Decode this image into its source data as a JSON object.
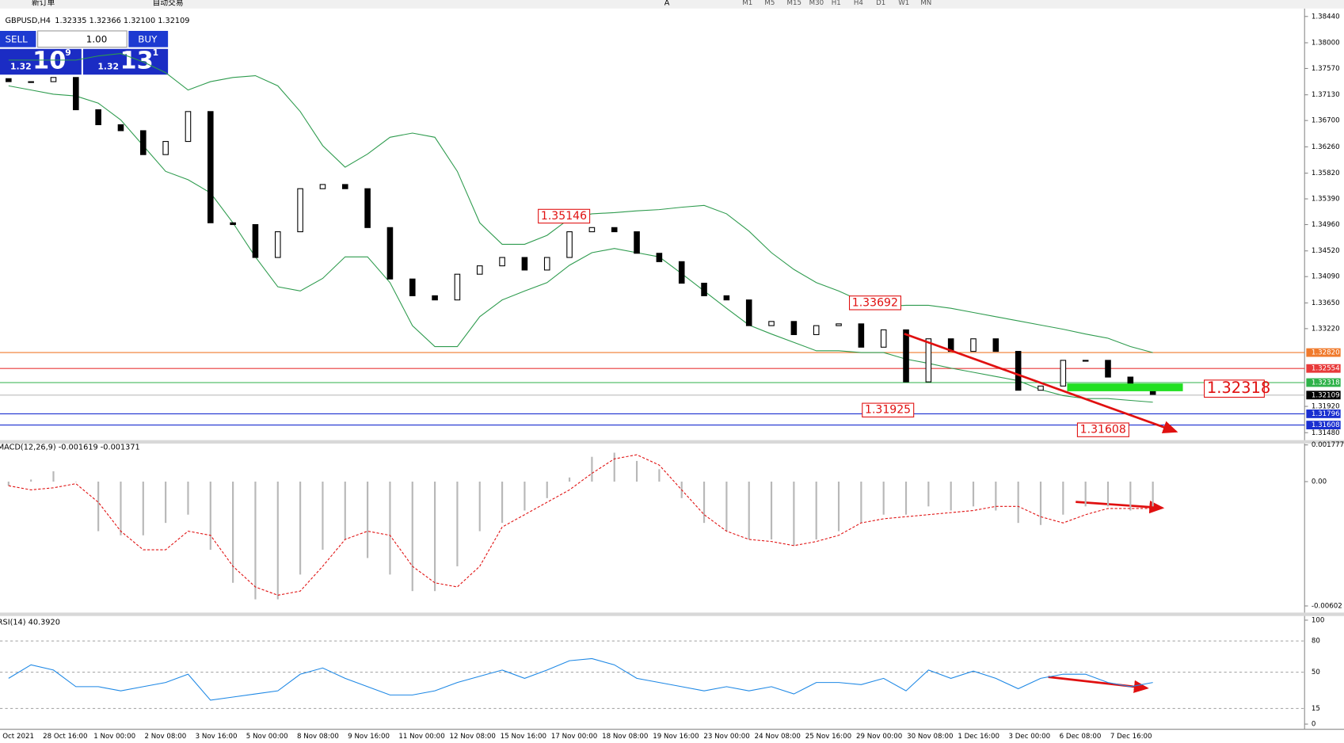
{
  "toolbar": {
    "items": [
      "新订单",
      "自动交易",
      "A"
    ],
    "timeframes": [
      "M1",
      "M5",
      "M15",
      "M30",
      "H1",
      "H4",
      "D1",
      "W1",
      "MN"
    ]
  },
  "symbol_header": {
    "symbol": "GBPUSD,H4",
    "ohlc": "1.32335 1.32366 1.32100 1.32109"
  },
  "trade_panel": {
    "sell": "SELL",
    "buy": "BUY",
    "volume": "1.00",
    "bid": {
      "prefix": "1.32",
      "big": "10",
      "sup": "9"
    },
    "ask": {
      "prefix": "1.32",
      "big": "13",
      "sup": "1"
    }
  },
  "main_chart": {
    "ylim": [
      1.3137,
      1.385
    ],
    "yticks": [
      {
        "value": 1.3844,
        "label": "1.38440"
      },
      {
        "value": 1.38,
        "label": "1.38000"
      },
      {
        "value": 1.3757,
        "label": "1.37570"
      },
      {
        "value": 1.3713,
        "label": "1.37130"
      },
      {
        "value": 1.367,
        "label": "1.36700"
      },
      {
        "value": 1.3626,
        "label": "1.36260"
      },
      {
        "value": 1.3582,
        "label": "1.35820"
      },
      {
        "value": 1.3539,
        "label": "1.35390"
      },
      {
        "value": 1.3496,
        "label": "1.34960"
      },
      {
        "value": 1.3452,
        "label": "1.34520"
      },
      {
        "value": 1.3409,
        "label": "1.34090"
      },
      {
        "value": 1.3365,
        "label": "1.33650"
      },
      {
        "value": 1.3322,
        "label": "1.33220"
      },
      {
        "value": 1.3192,
        "label": "1.31920"
      },
      {
        "value": 1.3148,
        "label": "1.31480"
      }
    ],
    "levels": [
      {
        "value": 1.3282,
        "label": "1.32820",
        "color": "#f07a2c"
      },
      {
        "value": 1.32554,
        "label": "1.32554",
        "color": "#e83a3a"
      },
      {
        "value": 1.32318,
        "label": "1.32318",
        "color": "#2fb24a"
      },
      {
        "value": 1.32109,
        "label": "1.32109",
        "color": "#000000"
      },
      {
        "value": 1.31796,
        "label": "1.31796",
        "color": "#1a2fd0"
      },
      {
        "value": 1.31608,
        "label": "1.31608",
        "color": "#1a2fd0"
      }
    ],
    "open": [
      1.374,
      1.3735,
      1.3735,
      1.3742,
      1.3688,
      1.3663,
      1.3653,
      1.3613,
      1.3635,
      1.3685,
      1.3499,
      1.3496,
      1.3441,
      1.3484,
      1.3556,
      1.3563,
      1.3556,
      1.3491,
      1.3405,
      1.3377,
      1.337,
      1.3413,
      1.3427,
      1.3441,
      1.342,
      1.3441,
      1.3484,
      1.3491,
      1.3484,
      1.3448,
      1.3434,
      1.3398,
      1.3377,
      1.337,
      1.3327,
      1.3334,
      1.3312,
      1.3327,
      1.333,
      1.3291,
      1.332,
      1.3233,
      1.3305,
      1.3284,
      1.3305,
      1.3284,
      1.3219,
      1.3226,
      1.3269,
      1.3269,
      1.3241,
      1.3219
    ],
    "close": [
      1.3735,
      1.3735,
      1.3742,
      1.3688,
      1.3663,
      1.3653,
      1.3613,
      1.3635,
      1.3685,
      1.3499,
      1.3496,
      1.3441,
      1.3484,
      1.3556,
      1.3563,
      1.3556,
      1.3491,
      1.3405,
      1.3377,
      1.337,
      1.3413,
      1.3427,
      1.3441,
      1.342,
      1.3441,
      1.3484,
      1.3491,
      1.3484,
      1.3448,
      1.3434,
      1.3398,
      1.3377,
      1.337,
      1.3327,
      1.3334,
      1.3312,
      1.3327,
      1.333,
      1.3291,
      1.332,
      1.3233,
      1.3305,
      1.3284,
      1.3305,
      1.3284,
      1.3219,
      1.3226,
      1.3269,
      1.3269,
      1.3241,
      1.3219,
      1.3212
    ],
    "upper_band": [
      1.3771,
      1.3771,
      1.3771,
      1.3771,
      1.3778,
      1.3782,
      1.3768,
      1.375,
      1.3721,
      1.3735,
      1.3742,
      1.3745,
      1.3728,
      1.3685,
      1.3628,
      1.3592,
      1.3614,
      1.3642,
      1.3649,
      1.3642,
      1.3585,
      1.3499,
      1.3463,
      1.3463,
      1.3478,
      1.3506,
      1.3514,
      1.3516,
      1.3519,
      1.3521,
      1.3525,
      1.3528,
      1.3514,
      1.3485,
      1.3449,
      1.3421,
      1.3399,
      1.3385,
      1.3368,
      1.3359,
      1.3361,
      1.3361,
      1.3356,
      1.3349,
      1.3342,
      1.3335,
      1.3328,
      1.3321,
      1.3313,
      1.3306,
      1.3292,
      1.3282
    ],
    "lower_band": [
      1.3728,
      1.3721,
      1.3714,
      1.3711,
      1.3699,
      1.3671,
      1.3628,
      1.3585,
      1.3571,
      1.3549,
      1.3499,
      1.3442,
      1.3392,
      1.3385,
      1.3406,
      1.3442,
      1.3442,
      1.3399,
      1.3327,
      1.3292,
      1.3292,
      1.3342,
      1.337,
      1.3385,
      1.3399,
      1.3428,
      1.3449,
      1.3456,
      1.3449,
      1.3442,
      1.3414,
      1.3385,
      1.3356,
      1.3328,
      1.3313,
      1.3299,
      1.3285,
      1.3285,
      1.3282,
      1.3282,
      1.3271,
      1.3264,
      1.3256,
      1.3249,
      1.3242,
      1.3235,
      1.322,
      1.321,
      1.3205,
      1.3205,
      1.3202,
      1.3199
    ],
    "annotations": [
      "1.35146",
      "1.33692",
      "1.31925",
      "1.31608",
      "1.32318"
    ]
  },
  "macd": {
    "label": "MACD(12,26,9) -0.001619 -0.001371",
    "ylim": [
      -0.0063,
      0.0018
    ],
    "yticks": [
      0.001777,
      {
        "value": 0,
        "label": "0.00"
      },
      -0.00602
    ],
    "histogram": [
      -0.0002,
      0.0001,
      0.0005,
      0,
      -0.0024,
      -0.0026,
      -0.0026,
      -0.002,
      -0.0016,
      -0.0033,
      -0.0049,
      -0.0057,
      -0.0057,
      -0.0045,
      -0.0033,
      -0.0028,
      -0.0037,
      -0.0045,
      -0.0053,
      -0.0053,
      -0.0041,
      -0.0024,
      -0.002,
      -0.0014,
      -0.0008,
      0.0002,
      0.0012,
      0.0014,
      0.001,
      0.0006,
      -0.0008,
      -0.002,
      -0.0024,
      -0.0028,
      -0.0028,
      -0.0031,
      -0.0028,
      -0.0024,
      -0.002,
      -0.0016,
      -0.0016,
      -0.0012,
      -0.0014,
      -0.0012,
      -0.0014,
      -0.002,
      -0.0021,
      -0.0016,
      -0.0012,
      -0.0012,
      -0.0014,
      -0.0012
    ],
    "signal": [
      -0.0002,
      -0.0004,
      -0.0003,
      -0.0001,
      -0.001,
      -0.0024,
      -0.0033,
      -0.0033,
      -0.0024,
      -0.0026,
      -0.0041,
      -0.0051,
      -0.0055,
      -0.0053,
      -0.0041,
      -0.0028,
      -0.0024,
      -0.0026,
      -0.0041,
      -0.0049,
      -0.0051,
      -0.0041,
      -0.0022,
      -0.0016,
      -0.001,
      -0.0004,
      0.0004,
      0.0011,
      0.0013,
      0.0008,
      -0.0004,
      -0.0016,
      -0.0024,
      -0.0028,
      -0.0029,
      -0.0031,
      -0.0029,
      -0.0026,
      -0.002,
      -0.0018,
      -0.0017,
      -0.0016,
      -0.0015,
      -0.0014,
      -0.0012,
      -0.0012,
      -0.0017,
      -0.002,
      -0.0016,
      -0.0013,
      -0.0013,
      -0.0013
    ]
  },
  "rsi": {
    "label": "RSI(14) 40.3920",
    "ylim": [
      -5,
      104
    ],
    "yticks": [
      100,
      80,
      50,
      15,
      0
    ],
    "values": [
      44,
      57,
      52,
      36,
      36,
      32,
      36,
      40,
      48,
      23,
      26,
      29,
      32,
      48,
      54,
      44,
      36,
      28,
      28,
      32,
      40,
      46,
      52,
      44,
      52,
      61,
      63,
      57,
      44,
      40,
      36,
      32,
      36,
      32,
      36,
      29,
      40,
      40,
      38,
      44,
      32,
      52,
      44,
      51,
      44,
      34,
      44,
      48,
      48,
      40,
      36,
      40
    ]
  },
  "time_axis": [
    "Oct 2021",
    "28 Oct 16:00",
    "1 Nov 00:00",
    "2 Nov 08:00",
    "3 Nov 16:00",
    "5 Nov 00:00",
    "8 Nov 08:00",
    "9 Nov 16:00",
    "11 Nov 00:00",
    "12 Nov 08:00",
    "15 Nov 16:00",
    "17 Nov 00:00",
    "18 Nov 08:00",
    "19 Nov 16:00",
    "23 Nov 00:00",
    "24 Nov 08:00",
    "25 Nov 16:00",
    "29 Nov 00:00",
    "30 Nov 08:00",
    "1 Dec 16:00",
    "3 Dec 00:00",
    "6 Dec 08:00",
    "7 Dec 16:00"
  ]
}
